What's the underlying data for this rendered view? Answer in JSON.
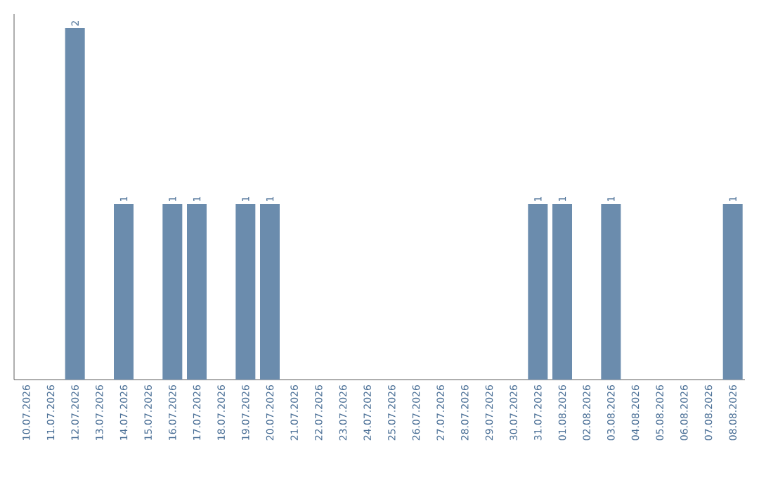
{
  "chart_data": {
    "type": "bar",
    "categories": [
      "10.07.2026",
      "11.07.2026",
      "12.07.2026",
      "13.07.2026",
      "14.07.2026",
      "15.07.2026",
      "16.07.2026",
      "17.07.2026",
      "18.07.2026",
      "19.07.2026",
      "20.07.2026",
      "21.07.2026",
      "22.07.2026",
      "23.07.2026",
      "24.07.2026",
      "25.07.2026",
      "26.07.2026",
      "27.07.2026",
      "28.07.2026",
      "29.07.2026",
      "30.07.2026",
      "31.07.2026",
      "01.08.2026",
      "02.08.2026",
      "03.08.2026",
      "04.08.2026",
      "05.08.2026",
      "06.08.2026",
      "07.08.2026",
      "08.08.2026"
    ],
    "values": [
      0,
      0,
      2,
      0,
      1,
      0,
      1,
      1,
      0,
      1,
      1,
      0,
      0,
      0,
      0,
      0,
      0,
      0,
      0,
      0,
      0,
      1,
      1,
      0,
      1,
      0,
      0,
      0,
      0,
      1
    ],
    "value_labels": [
      null,
      null,
      "2",
      null,
      "1",
      null,
      "1",
      "1",
      null,
      "1",
      "1",
      null,
      null,
      null,
      null,
      null,
      null,
      null,
      null,
      null,
      null,
      "1",
      "1",
      null,
      "1",
      null,
      null,
      null,
      null,
      "1"
    ],
    "color": "#6b8cad"
  }
}
